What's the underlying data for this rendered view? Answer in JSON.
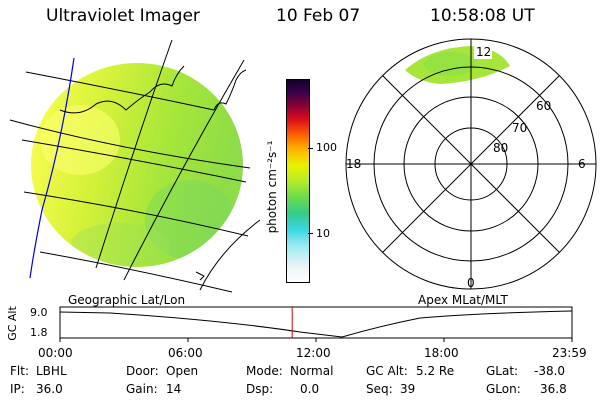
{
  "header": {
    "title": "Ultraviolet Imager",
    "date": "10 Feb 07",
    "time": "10:58:08 UT"
  },
  "colorbar": {
    "unit": "photon cm⁻²s⁻¹",
    "tick_high": "100",
    "tick_low": "10"
  },
  "polar": {
    "mlt_labels": {
      "top": "12",
      "left": "18",
      "right": "6",
      "bottom": "0"
    },
    "lat_labels": [
      "60",
      "70",
      "80"
    ]
  },
  "labels": {
    "geographic": "Geographic Lat/Lon",
    "apex": "Apex MLat/MLT"
  },
  "altitude_plot": {
    "ylabel": "GC Alt",
    "yticks": [
      "9.0",
      "1.8"
    ],
    "xticks": [
      "00:00",
      "06:00",
      "12:00",
      "18:00",
      "23:59"
    ],
    "current_time_fraction": 0.4535
  },
  "status": {
    "flt_label": "Flt:",
    "flt_value": "LBHL",
    "ip_label": "IP:",
    "ip_value": "36.0",
    "door_label": "Door:",
    "door_value": "Open",
    "gain_label": "Gain:",
    "gain_value": "14",
    "mode_label": "Mode:",
    "mode_value": "Normal",
    "dsp_label": "Dsp:",
    "dsp_value": "0.0",
    "gcalt_label": "GC Alt:",
    "gcalt_value": "5.2 Re",
    "seq_label": "Seq:",
    "seq_value": "39",
    "glat_label": "GLat:",
    "glat_value": "-38.0",
    "glon_label": "GLon:",
    "glon_value": "36.8"
  },
  "colors": {
    "cursor": "#d00000",
    "coast": "#0000dd"
  }
}
